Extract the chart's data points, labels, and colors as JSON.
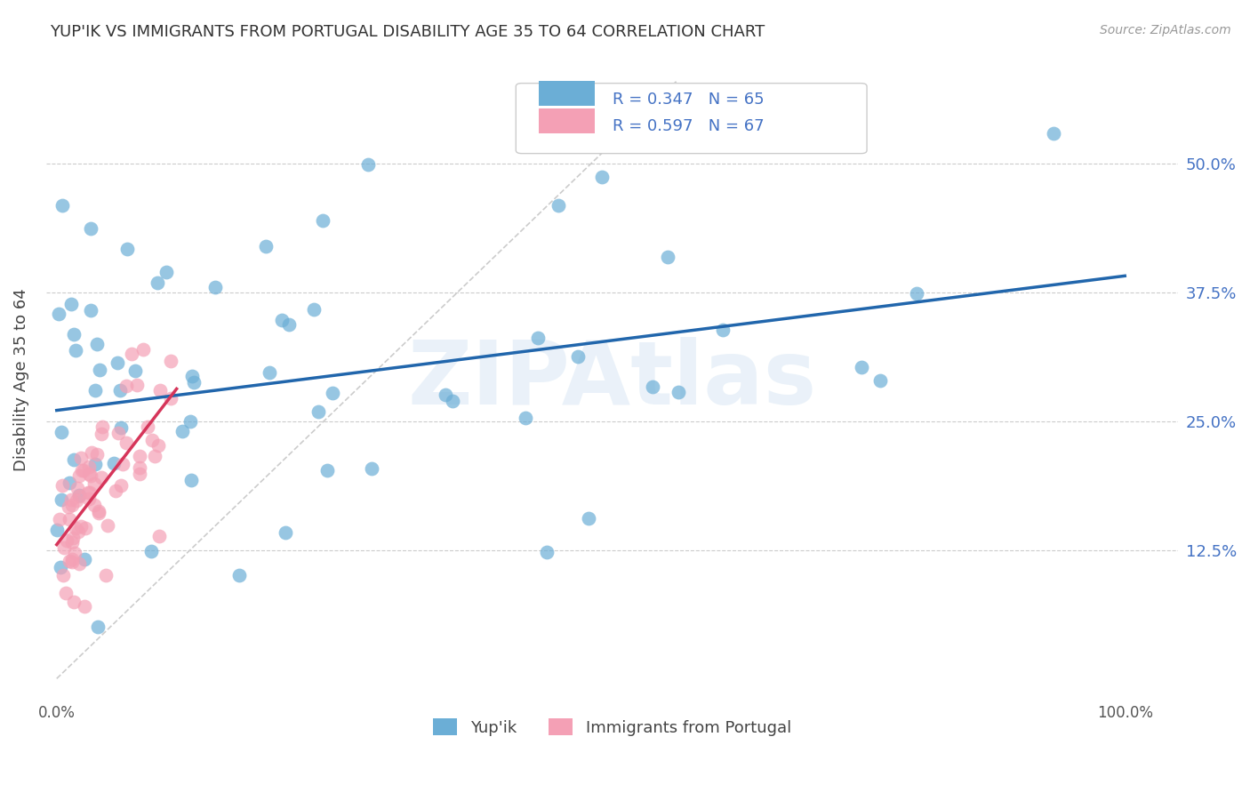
{
  "title": "YUP'IK VS IMMIGRANTS FROM PORTUGAL DISABILITY AGE 35 TO 64 CORRELATION CHART",
  "source": "Source: ZipAtlas.com",
  "ylabel": "Disability Age 35 to 64",
  "ytick_labels": [
    "12.5%",
    "25.0%",
    "37.5%",
    "50.0%"
  ],
  "legend_r1": "R = 0.347",
  "legend_n1": "N = 65",
  "legend_r2": "R = 0.597",
  "legend_n2": "N = 67",
  "color_blue": "#6baed6",
  "color_pink": "#f4a0b5",
  "line_blue": "#2166ac",
  "line_pink": "#d6355a",
  "background_color": "#ffffff",
  "watermark": "ZIPAtlas"
}
